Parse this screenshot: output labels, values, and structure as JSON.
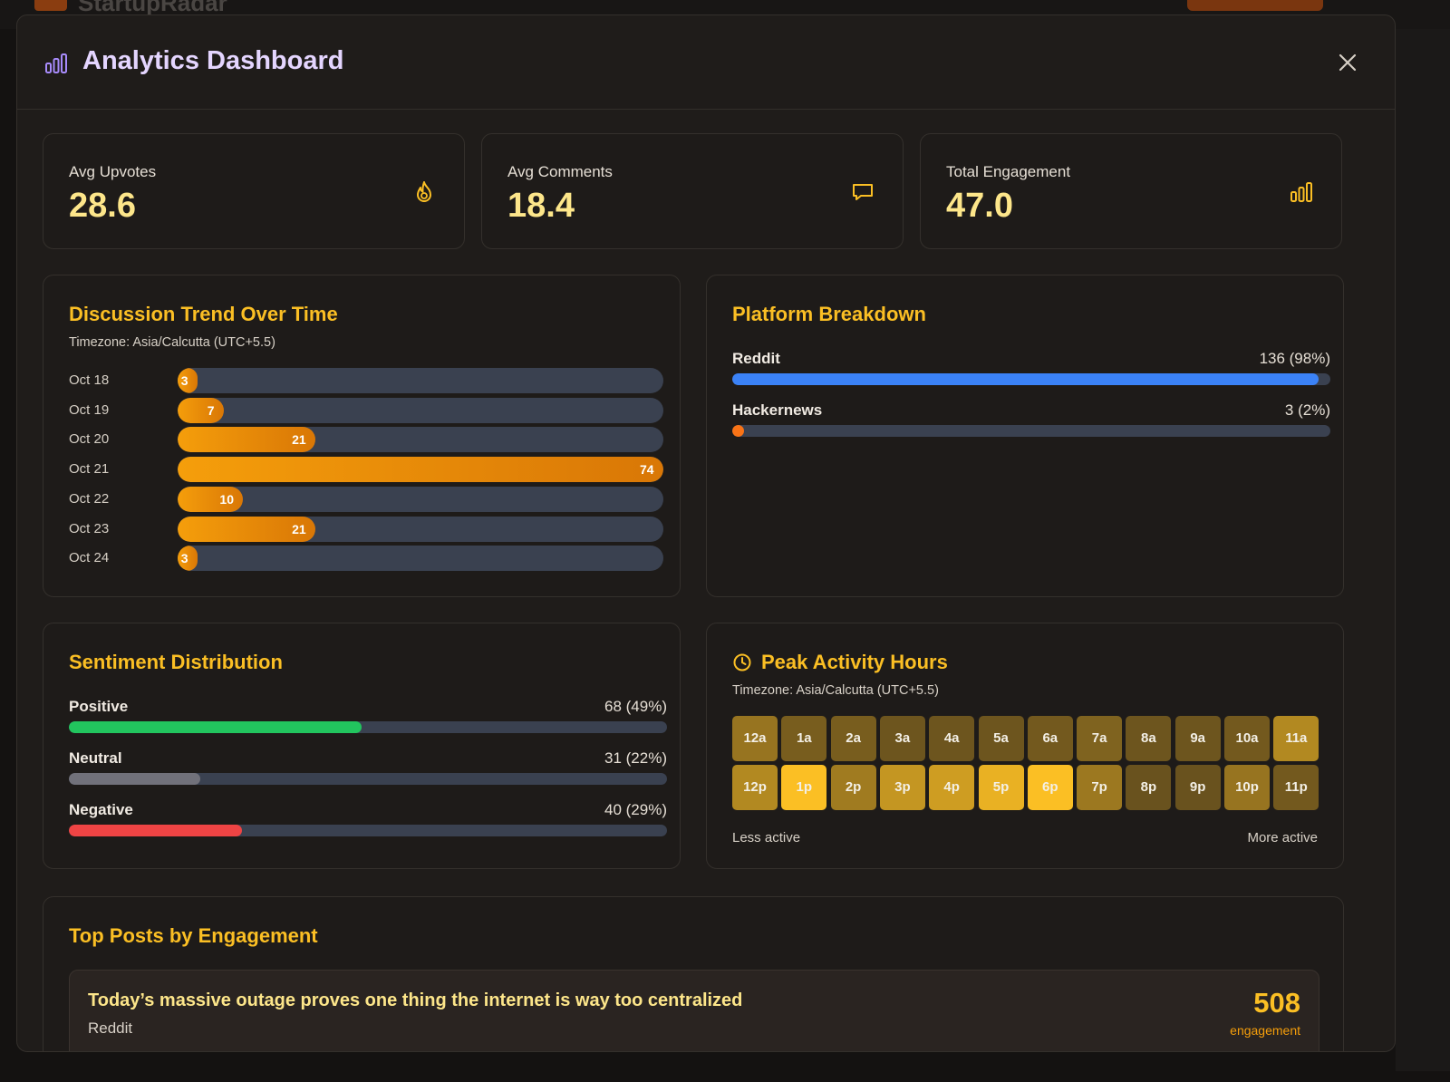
{
  "background": {
    "app_name": "StartupRadar"
  },
  "modal": {
    "title": "Analytics Dashboard",
    "close_icon": "close-icon"
  },
  "stats": [
    {
      "label": "Avg Upvotes",
      "value": "28.6",
      "icon": "flame-icon"
    },
    {
      "label": "Avg Comments",
      "value": "18.4",
      "icon": "comment-icon"
    },
    {
      "label": "Total Engagement",
      "value": "47.0",
      "icon": "bar-chart-icon"
    }
  ],
  "trend": {
    "title": "Discussion Trend Over Time",
    "timezone": "Timezone: Asia/Calcutta (UTC+5.5)"
  },
  "platform": {
    "title": "Platform Breakdown",
    "items": [
      {
        "label": "Reddit",
        "value": "136 (98%)",
        "fraction": 0.98,
        "color": "#3b82f6"
      },
      {
        "label": "Hackernews",
        "value": "3 (2%)",
        "fraction": 0.02,
        "color": "#f97316"
      }
    ]
  },
  "sentiment": {
    "title": "Sentiment Distribution",
    "items": [
      {
        "label": "Positive",
        "value": "68 (49%)",
        "fraction": 0.49,
        "color": "#22c55e"
      },
      {
        "label": "Neutral",
        "value": "31 (22%)",
        "fraction": 0.22,
        "color": "#71717a"
      },
      {
        "label": "Negative",
        "value": "40 (29%)",
        "fraction": 0.29,
        "color": "#ef4444"
      }
    ]
  },
  "peak": {
    "title": "Peak Activity Hours",
    "timezone": "Timezone: Asia/Calcutta (UTC+5.5)",
    "legend_less": "Less active",
    "legend_more": "More active",
    "hours": [
      {
        "label": "12a",
        "level": 0.45
      },
      {
        "label": "1a",
        "level": 0.28
      },
      {
        "label": "2a",
        "level": 0.28
      },
      {
        "label": "3a",
        "level": 0.22
      },
      {
        "label": "4a",
        "level": 0.22
      },
      {
        "label": "5a",
        "level": 0.22
      },
      {
        "label": "6a",
        "level": 0.25
      },
      {
        "label": "7a",
        "level": 0.32
      },
      {
        "label": "8a",
        "level": 0.22
      },
      {
        "label": "9a",
        "level": 0.22
      },
      {
        "label": "10a",
        "level": 0.25
      },
      {
        "label": "11a",
        "level": 0.6
      },
      {
        "label": "12p",
        "level": 0.6
      },
      {
        "label": "1p",
        "level": 1.0
      },
      {
        "label": "2p",
        "level": 0.5
      },
      {
        "label": "3p",
        "level": 0.7
      },
      {
        "label": "4p",
        "level": 0.75
      },
      {
        "label": "5p",
        "level": 0.9
      },
      {
        "label": "6p",
        "level": 1.0
      },
      {
        "label": "7p",
        "level": 0.48
      },
      {
        "label": "8p",
        "level": 0.2
      },
      {
        "label": "9p",
        "level": 0.2
      },
      {
        "label": "10p",
        "level": 0.45
      },
      {
        "label": "11p",
        "level": 0.25
      }
    ]
  },
  "top_posts": {
    "title": "Top Posts by Engagement",
    "items": [
      {
        "title": "Today’s massive outage proves one thing the internet is way too centralized",
        "platform": "Reddit",
        "score": "508",
        "score_label": "engagement"
      }
    ]
  },
  "chart_data": {
    "type": "bar",
    "orientation": "horizontal",
    "title": "Discussion Trend Over Time",
    "categories": [
      "Oct 18",
      "Oct 19",
      "Oct 20",
      "Oct 21",
      "Oct 22",
      "Oct 23",
      "Oct 24"
    ],
    "values": [
      3,
      7,
      21,
      74,
      10,
      21,
      3
    ],
    "xlim": [
      0,
      74
    ],
    "xlabel": "",
    "ylabel": ""
  }
}
